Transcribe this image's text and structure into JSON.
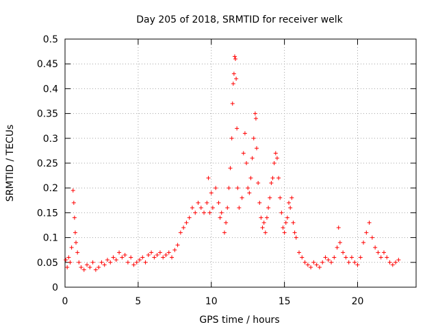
{
  "chart_data": {
    "type": "scatter",
    "title": "Day 205 of 2018, SRMTID for receiver welk",
    "xlabel": "GPS time / hours",
    "ylabel": "SRMTID / TECUs",
    "xlim": [
      0,
      24
    ],
    "ylim": [
      0,
      0.5
    ],
    "xticks": [
      0,
      5,
      10,
      15,
      20
    ],
    "yticks": [
      0,
      0.05,
      0.1,
      0.15,
      0.2,
      0.25,
      0.3,
      0.35,
      0.4,
      0.45,
      0.5
    ],
    "grid": true,
    "marker": "+",
    "series": [
      {
        "name": "SRMTID",
        "color": "#ff0000",
        "points": [
          [
            0.05,
            0.055
          ],
          [
            0.15,
            0.04
          ],
          [
            0.25,
            0.06
          ],
          [
            0.35,
            0.05
          ],
          [
            0.45,
            0.08
          ],
          [
            0.55,
            0.195
          ],
          [
            0.6,
            0.17
          ],
          [
            0.65,
            0.14
          ],
          [
            0.7,
            0.11
          ],
          [
            0.75,
            0.09
          ],
          [
            0.85,
            0.07
          ],
          [
            0.95,
            0.05
          ],
          [
            1.1,
            0.04
          ],
          [
            1.3,
            0.035
          ],
          [
            1.5,
            0.045
          ],
          [
            1.7,
            0.04
          ],
          [
            1.9,
            0.05
          ],
          [
            2.1,
            0.035
          ],
          [
            2.3,
            0.04
          ],
          [
            2.5,
            0.05
          ],
          [
            2.7,
            0.045
          ],
          [
            2.9,
            0.055
          ],
          [
            3.1,
            0.05
          ],
          [
            3.3,
            0.06
          ],
          [
            3.5,
            0.055
          ],
          [
            3.7,
            0.07
          ],
          [
            3.9,
            0.06
          ],
          [
            4.1,
            0.065
          ],
          [
            4.3,
            0.05
          ],
          [
            4.5,
            0.06
          ],
          [
            4.7,
            0.045
          ],
          [
            4.9,
            0.05
          ],
          [
            5.1,
            0.055
          ],
          [
            5.3,
            0.06
          ],
          [
            5.5,
            0.05
          ],
          [
            5.7,
            0.065
          ],
          [
            5.9,
            0.07
          ],
          [
            6.1,
            0.06
          ],
          [
            6.3,
            0.065
          ],
          [
            6.5,
            0.07
          ],
          [
            6.7,
            0.06
          ],
          [
            6.9,
            0.065
          ],
          [
            7.1,
            0.07
          ],
          [
            7.3,
            0.06
          ],
          [
            7.5,
            0.075
          ],
          [
            7.7,
            0.085
          ],
          [
            7.9,
            0.11
          ],
          [
            8.1,
            0.12
          ],
          [
            8.3,
            0.13
          ],
          [
            8.5,
            0.14
          ],
          [
            8.7,
            0.16
          ],
          [
            8.9,
            0.15
          ],
          [
            9.1,
            0.17
          ],
          [
            9.3,
            0.16
          ],
          [
            9.5,
            0.15
          ],
          [
            9.7,
            0.17
          ],
          [
            9.8,
            0.22
          ],
          [
            9.9,
            0.15
          ],
          [
            10.0,
            0.19
          ],
          [
            10.1,
            0.16
          ],
          [
            10.3,
            0.2
          ],
          [
            10.5,
            0.17
          ],
          [
            10.6,
            0.14
          ],
          [
            10.7,
            0.15
          ],
          [
            10.9,
            0.11
          ],
          [
            11.0,
            0.13
          ],
          [
            11.1,
            0.16
          ],
          [
            11.2,
            0.2
          ],
          [
            11.3,
            0.24
          ],
          [
            11.4,
            0.3
          ],
          [
            11.45,
            0.37
          ],
          [
            11.5,
            0.41
          ],
          [
            11.55,
            0.43
          ],
          [
            11.6,
            0.465
          ],
          [
            11.65,
            0.46
          ],
          [
            11.7,
            0.42
          ],
          [
            11.75,
            0.32
          ],
          [
            11.8,
            0.2
          ],
          [
            11.9,
            0.16
          ],
          [
            12.1,
            0.18
          ],
          [
            12.2,
            0.27
          ],
          [
            12.3,
            0.31
          ],
          [
            12.4,
            0.25
          ],
          [
            12.5,
            0.2
          ],
          [
            12.6,
            0.19
          ],
          [
            12.7,
            0.22
          ],
          [
            12.8,
            0.26
          ],
          [
            12.9,
            0.3
          ],
          [
            13.0,
            0.35
          ],
          [
            13.05,
            0.34
          ],
          [
            13.1,
            0.28
          ],
          [
            13.2,
            0.21
          ],
          [
            13.3,
            0.17
          ],
          [
            13.4,
            0.14
          ],
          [
            13.5,
            0.12
          ],
          [
            13.6,
            0.13
          ],
          [
            13.7,
            0.11
          ],
          [
            13.8,
            0.14
          ],
          [
            13.9,
            0.16
          ],
          [
            14.0,
            0.18
          ],
          [
            14.1,
            0.21
          ],
          [
            14.2,
            0.22
          ],
          [
            14.3,
            0.25
          ],
          [
            14.4,
            0.27
          ],
          [
            14.5,
            0.26
          ],
          [
            14.6,
            0.22
          ],
          [
            14.7,
            0.18
          ],
          [
            14.8,
            0.15
          ],
          [
            14.9,
            0.12
          ],
          [
            15.0,
            0.11
          ],
          [
            15.1,
            0.13
          ],
          [
            15.2,
            0.14
          ],
          [
            15.3,
            0.17
          ],
          [
            15.4,
            0.16
          ],
          [
            15.5,
            0.18
          ],
          [
            15.6,
            0.13
          ],
          [
            15.7,
            0.11
          ],
          [
            15.8,
            0.1
          ],
          [
            16.0,
            0.07
          ],
          [
            16.2,
            0.06
          ],
          [
            16.4,
            0.05
          ],
          [
            16.6,
            0.045
          ],
          [
            16.8,
            0.04
          ],
          [
            17.0,
            0.05
          ],
          [
            17.2,
            0.045
          ],
          [
            17.4,
            0.04
          ],
          [
            17.6,
            0.05
          ],
          [
            17.8,
            0.06
          ],
          [
            18.0,
            0.055
          ],
          [
            18.2,
            0.05
          ],
          [
            18.4,
            0.06
          ],
          [
            18.6,
            0.08
          ],
          [
            18.7,
            0.12
          ],
          [
            18.8,
            0.09
          ],
          [
            19.0,
            0.07
          ],
          [
            19.2,
            0.06
          ],
          [
            19.4,
            0.05
          ],
          [
            19.6,
            0.06
          ],
          [
            19.8,
            0.05
          ],
          [
            20.0,
            0.045
          ],
          [
            20.2,
            0.06
          ],
          [
            20.4,
            0.09
          ],
          [
            20.6,
            0.11
          ],
          [
            20.8,
            0.13
          ],
          [
            21.0,
            0.1
          ],
          [
            21.2,
            0.08
          ],
          [
            21.4,
            0.07
          ],
          [
            21.6,
            0.06
          ],
          [
            21.8,
            0.07
          ],
          [
            22.0,
            0.06
          ],
          [
            22.2,
            0.05
          ],
          [
            22.4,
            0.045
          ],
          [
            22.6,
            0.05
          ],
          [
            22.8,
            0.055
          ]
        ]
      }
    ]
  }
}
